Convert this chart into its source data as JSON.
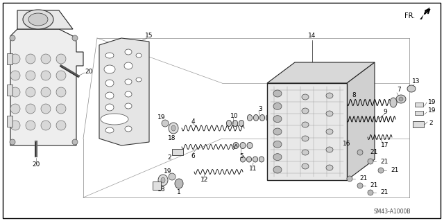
{
  "bg_color": "#ffffff",
  "line_color": "#000000",
  "fig_width": 6.4,
  "fig_height": 3.19,
  "dpi": 100,
  "watermark": "SM43-A1000B",
  "fr_label": "FR."
}
